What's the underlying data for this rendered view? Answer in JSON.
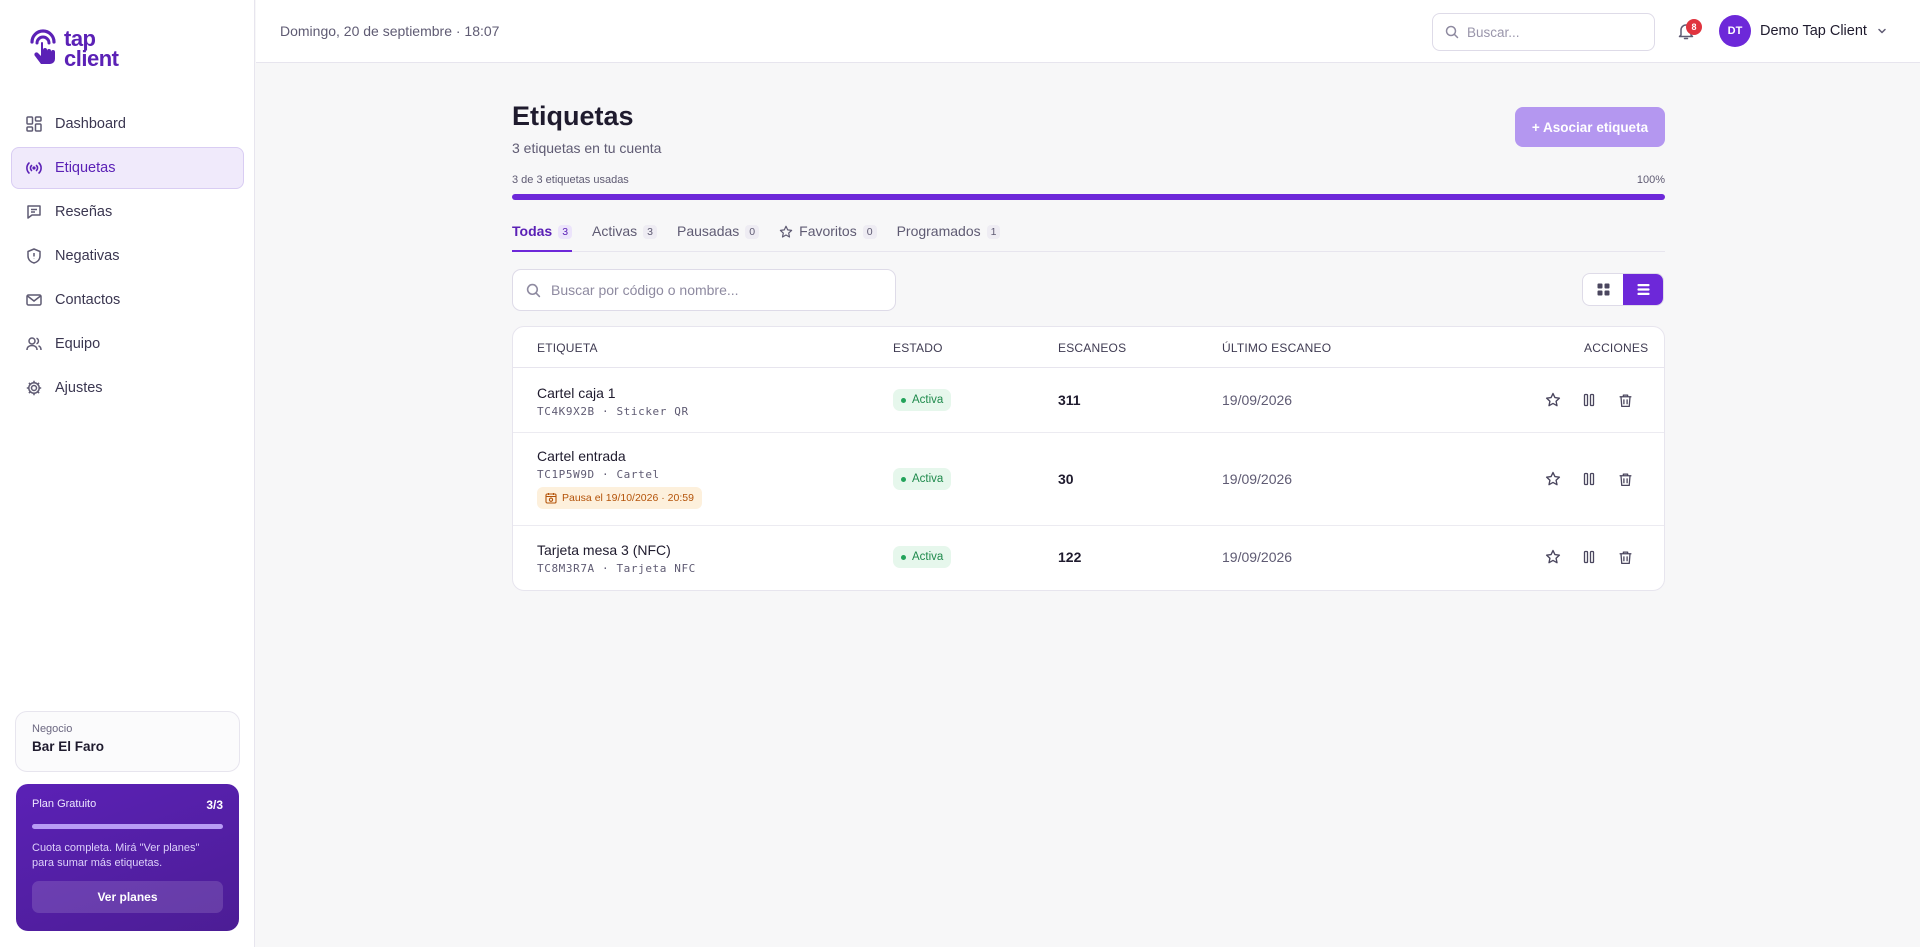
{
  "brand": {
    "line1": "tap",
    "line2": "client"
  },
  "sidebar": {
    "items": [
      {
        "label": "Dashboard",
        "icon": "dashboard-icon"
      },
      {
        "label": "Etiquetas",
        "icon": "tags-signal-icon",
        "active": true
      },
      {
        "label": "Reseñas",
        "icon": "reviews-icon"
      },
      {
        "label": "Negativas",
        "icon": "shield-icon"
      },
      {
        "label": "Contactos",
        "icon": "mail-icon"
      },
      {
        "label": "Equipo",
        "icon": "users-icon"
      },
      {
        "label": "Ajustes",
        "icon": "gear-icon"
      }
    ],
    "business": {
      "label": "Negocio",
      "name": "Bar El Faro"
    },
    "plan": {
      "name": "Plan Gratuito",
      "count": "3/3",
      "usage_fraction": 1.0,
      "note": "Cuota completa. Mirá \"Ver planes\" para sumar más etiquetas.",
      "button": "Ver planes"
    }
  },
  "topbar": {
    "date": "Domingo, 20 de septiembre · 18:07",
    "search_placeholder": "Buscar...",
    "notifications": "8",
    "user_initials": "DT",
    "user_name": "Demo Tap Client"
  },
  "main": {
    "title": "Etiquetas",
    "subtitle": "3 etiquetas en tu cuenta",
    "add_button": "+ Asociar etiqueta",
    "usage": {
      "label": "3 de 3 etiquetas usadas",
      "percent_text": "100%",
      "fraction": 1.0
    },
    "tabs": [
      {
        "label": "Todas",
        "count": "3",
        "active": true
      },
      {
        "label": "Activas",
        "count": "3"
      },
      {
        "label": "Pausadas",
        "count": "0"
      },
      {
        "label": "Favoritos",
        "count": "0",
        "icon": "star-icon"
      },
      {
        "label": "Programados",
        "count": "1"
      }
    ],
    "search_placeholder": "Buscar por código o nombre...",
    "table": {
      "headers": {
        "tag": "ETIQUETA",
        "status": "ESTADO",
        "scans": "ESCANEOS",
        "last": "ÚLTIMO ESCANEO",
        "actions": "ACCIONES"
      },
      "rows": [
        {
          "name": "Cartel caja 1",
          "code": "TC4K9X2B · Sticker QR",
          "status": "Activa",
          "scans": "311",
          "last": "19/09/2026"
        },
        {
          "name": "Cartel entrada",
          "code": "TC1P5W9D · Cartel",
          "schedule": "Pausa el 19/10/2026 · 20:59",
          "status": "Activa",
          "scans": "30",
          "last": "19/09/2026"
        },
        {
          "name": "Tarjeta mesa 3 (NFC)",
          "code": "TC8M3R7A · Tarjeta NFC",
          "status": "Activa",
          "scans": "122",
          "last": "19/09/2026"
        }
      ]
    }
  },
  "colors": {
    "accent": "#6d28d9",
    "accent_soft": "#b497f0",
    "success": "#1f8a4c",
    "warning": "#b45309",
    "badge": "#e0343f"
  }
}
